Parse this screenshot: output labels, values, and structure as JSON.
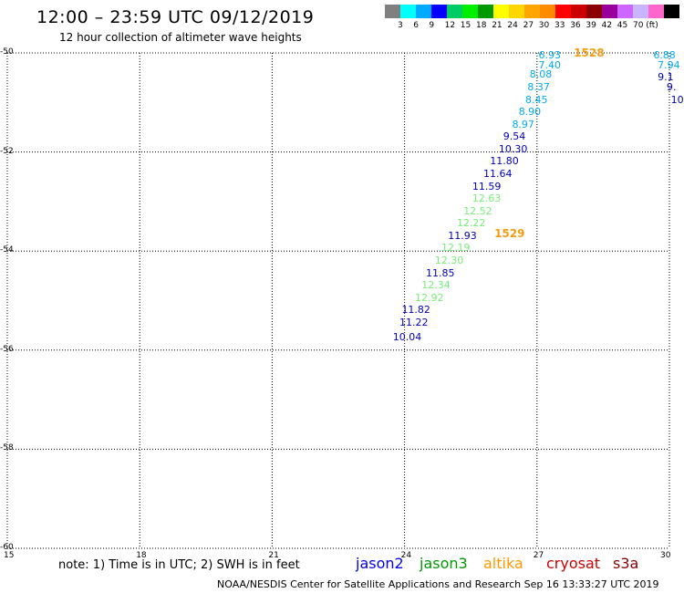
{
  "title": "12:00 – 23:59 UTC 09/12/2019",
  "subtitle": "12 hour collection of altimeter wave heights",
  "legend": {
    "colors": [
      "#808080",
      "#00ffff",
      "#00aaff",
      "#0000ff",
      "#00cc66",
      "#00ee00",
      "#009900",
      "#ffff00",
      "#ffd700",
      "#ffa500",
      "#ff8c00",
      "#ff0000",
      "#cc0000",
      "#8b0000",
      "#990099",
      "#cc66ff",
      "#c8b4ff",
      "#ff66cc",
      "#000000"
    ],
    "labels": [
      "3",
      "6",
      "9",
      "12",
      "15",
      "18",
      "21",
      "24",
      "27",
      "30",
      "33",
      "36",
      "39",
      "42",
      "45",
      "70",
      "(ft)"
    ]
  },
  "axes": {
    "lon_ticks": [
      "15",
      "18",
      "21",
      "24",
      "27",
      "30"
    ],
    "lat_ticks": [
      "-50",
      "-52",
      "-54",
      "-56",
      "-58",
      "-60"
    ]
  },
  "chart_data": {
    "type": "scatter",
    "xlim": [
      15,
      30
    ],
    "ylim": [
      -60,
      -50
    ],
    "grid": true,
    "points": [
      {
        "lon": 27.2,
        "lat": -50.05,
        "v": "6.93",
        "sat": "jason3"
      },
      {
        "lon": 27.2,
        "lat": -50.25,
        "v": "7.40",
        "sat": "jason3"
      },
      {
        "lon": 27.0,
        "lat": -50.45,
        "v": "8.08",
        "sat": "jason3"
      },
      {
        "lon": 26.95,
        "lat": -50.7,
        "v": "8.37",
        "sat": "jason3"
      },
      {
        "lon": 26.9,
        "lat": -50.95,
        "v": "8.45",
        "sat": "jason3"
      },
      {
        "lon": 26.75,
        "lat": -51.2,
        "v": "8.90",
        "sat": "jason3"
      },
      {
        "lon": 26.6,
        "lat": -51.45,
        "v": "8.97",
        "sat": "jason3"
      },
      {
        "lon": 26.4,
        "lat": -51.7,
        "v": "9.54",
        "sat": "jason2"
      },
      {
        "lon": 26.3,
        "lat": -51.95,
        "v": "10.30",
        "sat": "jason2"
      },
      {
        "lon": 26.1,
        "lat": -52.2,
        "v": "11.80",
        "sat": "jason2"
      },
      {
        "lon": 25.95,
        "lat": -52.45,
        "v": "11.64",
        "sat": "jason2"
      },
      {
        "lon": 25.7,
        "lat": -52.7,
        "v": "11.59",
        "sat": "jason2"
      },
      {
        "lon": 25.7,
        "lat": -52.95,
        "v": "12.63",
        "sat": "jason3"
      },
      {
        "lon": 25.5,
        "lat": -53.2,
        "v": "12.52",
        "sat": "jason3"
      },
      {
        "lon": 25.35,
        "lat": -53.45,
        "v": "12.22",
        "sat": "jason3"
      },
      {
        "lon": 25.15,
        "lat": -53.7,
        "v": "11.93",
        "sat": "jason2"
      },
      {
        "lon": 25.0,
        "lat": -53.95,
        "v": "12.19",
        "sat": "jason3"
      },
      {
        "lon": 24.85,
        "lat": -54.2,
        "v": "12.30",
        "sat": "jason3"
      },
      {
        "lon": 24.65,
        "lat": -54.45,
        "v": "11.85",
        "sat": "jason2"
      },
      {
        "lon": 24.55,
        "lat": -54.7,
        "v": "12.34",
        "sat": "jason3"
      },
      {
        "lon": 24.4,
        "lat": -54.95,
        "v": "12.92",
        "sat": "jason3"
      },
      {
        "lon": 24.1,
        "lat": -55.2,
        "v": "11.82",
        "sat": "jason2"
      },
      {
        "lon": 24.05,
        "lat": -55.45,
        "v": "11.22",
        "sat": "jason2"
      },
      {
        "lon": 23.9,
        "lat": -55.75,
        "v": "10.04",
        "sat": "jason2"
      },
      {
        "lon": 29.8,
        "lat": -50.05,
        "v": "6.88",
        "sat": "jason3"
      },
      {
        "lon": 29.9,
        "lat": -50.25,
        "v": "7.94",
        "sat": "jason3"
      },
      {
        "lon": 29.9,
        "lat": -50.5,
        "v": "9.1",
        "sat": "jason2"
      },
      {
        "lon": 30.1,
        "lat": -50.7,
        "v": "9.",
        "sat": "jason2"
      },
      {
        "lon": 30.2,
        "lat": -50.95,
        "v": "10",
        "sat": "jason2"
      }
    ],
    "passes": [
      {
        "lon": 28.0,
        "lat": -50.0,
        "label": "1528"
      },
      {
        "lon": 26.2,
        "lat": -53.65,
        "label": "1529"
      }
    ]
  },
  "note": "note:  1) Time is in UTC;  2) SWH is in feet",
  "satellites": [
    {
      "name": "jason2",
      "color": "#0000ee"
    },
    {
      "name": "jason3",
      "color": "#009900"
    },
    {
      "name": "altika",
      "color": "#ff9900"
    },
    {
      "name": "cryosat",
      "color": "#cc0000"
    },
    {
      "name": "s3a",
      "color": "#880000"
    }
  ],
  "footer": "NOAA/NESDIS Center for Satellite Applications and Research    Sep 16 13:33:27 UTC 2019"
}
